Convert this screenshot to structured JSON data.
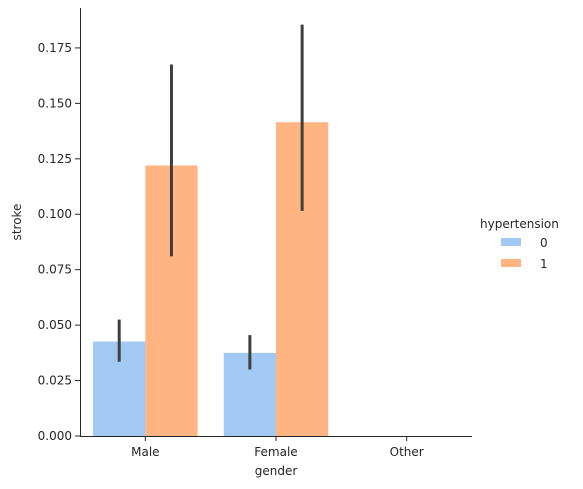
{
  "chart_data": {
    "type": "bar",
    "xlabel": "gender",
    "ylabel": "stroke",
    "categories": [
      "Male",
      "Female",
      "Other"
    ],
    "ylim": [
      0,
      0.193
    ],
    "yticks": [
      "0.000",
      "0.025",
      "0.050",
      "0.075",
      "0.100",
      "0.125",
      "0.150",
      "0.175"
    ],
    "ytick_values": [
      0,
      0.025,
      0.05,
      0.075,
      0.1,
      0.125,
      0.15,
      0.175
    ],
    "grid": false,
    "legend": {
      "title": "hypertension",
      "placement": "right"
    },
    "series": [
      {
        "name": "0",
        "color": "#a1c9f4",
        "values": [
          0.0426,
          0.0375,
          null
        ],
        "ci": [
          [
            0.0335,
            0.0525
          ],
          [
            0.03,
            0.0455
          ],
          null
        ]
      },
      {
        "name": "1",
        "color": "#ffb482",
        "values": [
          0.122,
          0.1415,
          null
        ],
        "ci": [
          [
            0.081,
            0.1675
          ],
          [
            0.1015,
            0.1855
          ],
          null
        ]
      }
    ],
    "errorbar_color": "#3f3f3f"
  }
}
